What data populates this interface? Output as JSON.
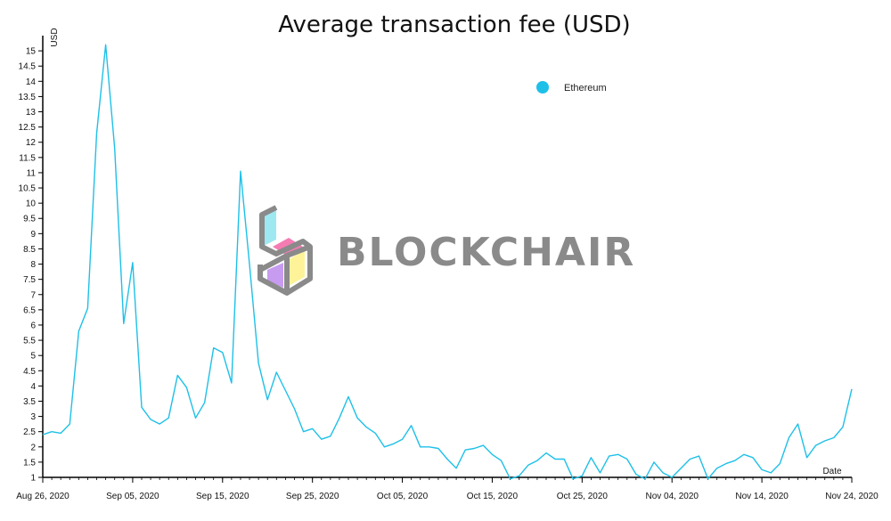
{
  "chart_data": {
    "type": "line",
    "title": "Average transaction fee (USD)",
    "ylabel": "USD",
    "xlabel": "Date",
    "ylim": [
      1,
      15.5
    ],
    "yticks": [
      1,
      1.5,
      2,
      2.5,
      3,
      3.5,
      4,
      4.5,
      5,
      5.5,
      6,
      6.5,
      7,
      7.5,
      8,
      8.5,
      9,
      9.5,
      10,
      10.5,
      11,
      11.5,
      12,
      12.5,
      13,
      13.5,
      14,
      14.5,
      15
    ],
    "xlim": [
      "2020-08-26",
      "2020-11-24"
    ],
    "xtick_labels": [
      "Aug 26, 2020",
      "Sep 05, 2020",
      "Sep 15, 2020",
      "Sep 25, 2020",
      "Oct 05, 2020",
      "Oct 15, 2020",
      "Oct 25, 2020",
      "Nov 04, 2020",
      "Nov 14, 2020",
      "Nov 24, 2020"
    ],
    "grid": false,
    "legend_position": "top-right",
    "series": [
      {
        "name": "Ethereum",
        "color": "#1ec0e8",
        "x": [
          "2020-08-26",
          "2020-08-27",
          "2020-08-28",
          "2020-08-29",
          "2020-08-30",
          "2020-08-31",
          "2020-09-01",
          "2020-09-02",
          "2020-09-03",
          "2020-09-04",
          "2020-09-05",
          "2020-09-06",
          "2020-09-07",
          "2020-09-08",
          "2020-09-09",
          "2020-09-10",
          "2020-09-11",
          "2020-09-12",
          "2020-09-13",
          "2020-09-14",
          "2020-09-15",
          "2020-09-16",
          "2020-09-17",
          "2020-09-18",
          "2020-09-19",
          "2020-09-20",
          "2020-09-21",
          "2020-09-22",
          "2020-09-23",
          "2020-09-24",
          "2020-09-25",
          "2020-09-26",
          "2020-09-27",
          "2020-09-28",
          "2020-09-29",
          "2020-09-30",
          "2020-10-01",
          "2020-10-02",
          "2020-10-03",
          "2020-10-04",
          "2020-10-05",
          "2020-10-06",
          "2020-10-07",
          "2020-10-08",
          "2020-10-09",
          "2020-10-10",
          "2020-10-11",
          "2020-10-12",
          "2020-10-13",
          "2020-10-14",
          "2020-10-15",
          "2020-10-16",
          "2020-10-17",
          "2020-10-18",
          "2020-10-19",
          "2020-10-20",
          "2020-10-21",
          "2020-10-22",
          "2020-10-23",
          "2020-10-24",
          "2020-10-25",
          "2020-10-26",
          "2020-10-27",
          "2020-10-28",
          "2020-10-29",
          "2020-10-30",
          "2020-10-31",
          "2020-11-01",
          "2020-11-02",
          "2020-11-03",
          "2020-11-04",
          "2020-11-05",
          "2020-11-06",
          "2020-11-07",
          "2020-11-08",
          "2020-11-09",
          "2020-11-10",
          "2020-11-11",
          "2020-11-12",
          "2020-11-13",
          "2020-11-14",
          "2020-11-15",
          "2020-11-16",
          "2020-11-17",
          "2020-11-18",
          "2020-11-19",
          "2020-11-20",
          "2020-11-21",
          "2020-11-22",
          "2020-11-23",
          "2020-11-24"
        ],
        "values": [
          2.4,
          2.5,
          2.45,
          2.75,
          5.8,
          6.55,
          12.3,
          15.2,
          11.8,
          6.05,
          8.05,
          3.3,
          2.9,
          2.75,
          2.95,
          4.35,
          3.95,
          2.95,
          3.45,
          5.25,
          5.1,
          4.1,
          11.05,
          8.0,
          4.75,
          3.55,
          4.45,
          3.85,
          3.25,
          2.5,
          2.6,
          2.25,
          2.35,
          2.95,
          3.65,
          2.95,
          2.65,
          2.45,
          2.0,
          2.1,
          2.25,
          2.7,
          2.0,
          2.0,
          1.95,
          1.6,
          1.3,
          1.9,
          1.95,
          2.05,
          1.75,
          1.55,
          0.95,
          1.05,
          1.4,
          1.55,
          1.8,
          1.6,
          1.6,
          0.95,
          1.05,
          1.65,
          1.15,
          1.7,
          1.75,
          1.6,
          1.1,
          0.95,
          1.5,
          1.15,
          1.0,
          1.3,
          1.6,
          1.7,
          0.95,
          1.3,
          1.45,
          1.55,
          1.75,
          1.65,
          1.25,
          1.15,
          1.45,
          2.3,
          2.75,
          1.65,
          2.05,
          2.2,
          2.3,
          2.65,
          3.9
        ]
      }
    ]
  },
  "watermark": {
    "text": "BLOCKCHAIR"
  }
}
